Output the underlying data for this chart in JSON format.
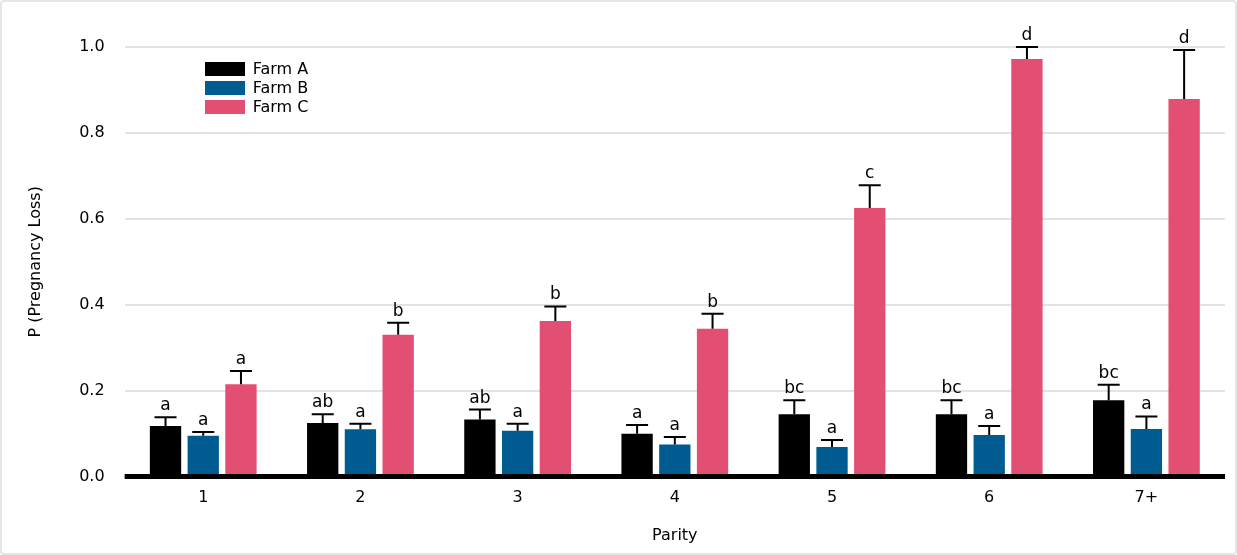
{
  "chart_data": {
    "type": "bar",
    "xlabel": "Parity",
    "ylabel": "P (Pregnancy Loss)",
    "categories": [
      "1",
      "2",
      "3",
      "4",
      "5",
      "6",
      "7+"
    ],
    "series": [
      {
        "name": "Farm A",
        "color": "#000000",
        "values": [
          0.118,
          0.125,
          0.133,
          0.1,
          0.145,
          0.145,
          0.178
        ],
        "errors": [
          [
            0.118,
            0.138
          ],
          [
            0.125,
            0.145
          ],
          [
            0.133,
            0.156
          ],
          [
            0.1,
            0.12
          ],
          [
            0.145,
            0.178
          ],
          [
            0.145,
            0.178
          ],
          [
            0.178,
            0.214
          ]
        ],
        "value_labels": [
          "a",
          "ab",
          "ab",
          "a",
          "bc",
          "bc",
          "bc"
        ]
      },
      {
        "name": "Farm B",
        "color": "#005b91",
        "values": [
          0.095,
          0.11,
          0.107,
          0.075,
          0.069,
          0.097,
          0.111
        ],
        "errors": [
          [
            0.095,
            0.104
          ],
          [
            0.11,
            0.123
          ],
          [
            0.107,
            0.123
          ],
          [
            0.075,
            0.092
          ],
          [
            0.069,
            0.085
          ],
          [
            0.097,
            0.118
          ],
          [
            0.111,
            0.14
          ]
        ],
        "value_labels": [
          "a",
          "a",
          "a",
          "a",
          "a",
          "a",
          "a"
        ]
      },
      {
        "name": "Farm C",
        "color": "#e24f72",
        "values": [
          0.215,
          0.33,
          0.362,
          0.344,
          0.625,
          0.972,
          0.879
        ],
        "errors": [
          [
            0.215,
            0.246
          ],
          [
            0.33,
            0.358
          ],
          [
            0.362,
            0.396
          ],
          [
            0.344,
            0.379
          ],
          [
            0.625,
            0.678
          ],
          [
            0.972,
            1.0
          ],
          [
            0.879,
            0.993
          ]
        ],
        "value_labels": [
          "a",
          "b",
          "b",
          "b",
          "c",
          "d",
          "d"
        ]
      }
    ],
    "ylim": [
      0,
      1
    ],
    "yticks": [
      {
        "value": 0,
        "label": "0.0"
      },
      {
        "value": 0.2,
        "label": "0.2"
      },
      {
        "value": 0.4,
        "label": "0.4"
      },
      {
        "value": 0.6,
        "label": "0.6"
      },
      {
        "value": 0.8,
        "label": "0.8"
      },
      {
        "value": 1,
        "label": "1.0"
      }
    ],
    "grid": "y",
    "legend": "top left"
  }
}
